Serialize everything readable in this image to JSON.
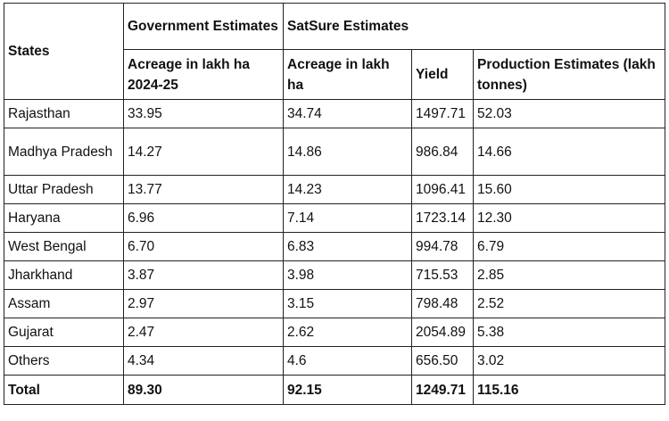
{
  "table": {
    "headers": {
      "states": "States",
      "government_group": "Government Estimates",
      "satsure_group": "SatSure Estimates",
      "gov_acreage": "Acreage in lakh ha 2024-25",
      "sat_acreage": "Acreage in lakh ha",
      "yield": "Yield",
      "production": "Production Estimates (lakh tonnes)"
    },
    "rows": [
      {
        "state": "Rajasthan",
        "gov_acreage": "33.95",
        "sat_acreage": "34.74",
        "yield": "1497.71",
        "production": "52.03"
      },
      {
        "state": "Madhya Pradesh",
        "gov_acreage": "14.27",
        "sat_acreage": "14.86",
        "yield": "986.84",
        "production": "14.66"
      },
      {
        "state": "Uttar Pradesh",
        "gov_acreage": "13.77",
        "sat_acreage": "14.23",
        "yield": "1096.41",
        "production": "15.60"
      },
      {
        "state": "Haryana",
        "gov_acreage": "6.96",
        "sat_acreage": "7.14",
        "yield": "1723.14",
        "production": "12.30"
      },
      {
        "state": "West Bengal",
        "gov_acreage": "6.70",
        "sat_acreage": "6.83",
        "yield": "994.78",
        "production": "6.79"
      },
      {
        "state": "Jharkhand",
        "gov_acreage": "3.87",
        "sat_acreage": "3.98",
        "yield": "715.53",
        "production": "2.85"
      },
      {
        "state": "Assam",
        "gov_acreage": "2.97",
        "sat_acreage": "3.15",
        "yield": "798.48",
        "production": "2.52"
      },
      {
        "state": "Gujarat",
        "gov_acreage": "2.47",
        "sat_acreage": "2.62",
        "yield": "2054.89",
        "production": "5.38"
      },
      {
        "state": "Others",
        "gov_acreage": "4.34",
        "sat_acreage": "4.6",
        "yield": "656.50",
        "production": "3.02"
      }
    ],
    "total": {
      "state": "Total",
      "gov_acreage": "89.30",
      "sat_acreage": "92.15",
      "yield": "1249.71",
      "production": "115.16"
    }
  },
  "colors": {
    "border": "#222222",
    "text": "#111111",
    "background": "#ffffff"
  }
}
